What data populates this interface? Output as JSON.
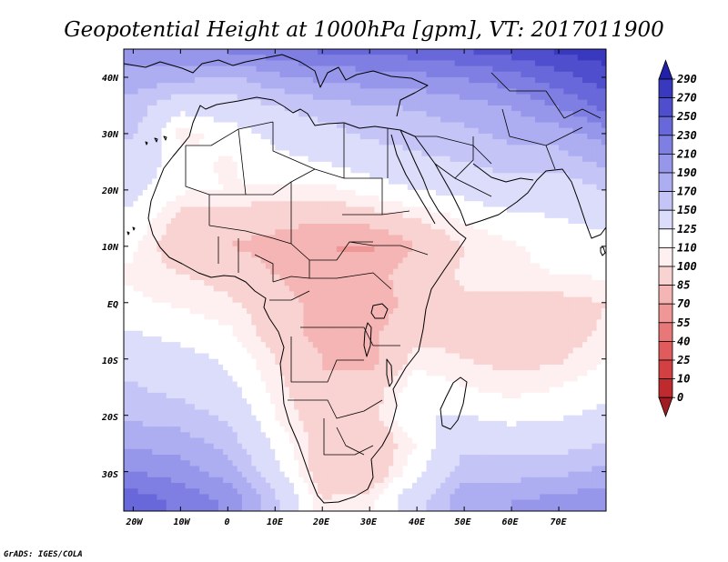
{
  "title": "Geopotential Height at 1000hPa [gpm], VT: 2017011900",
  "credit": "GrADS: IGES/COLA",
  "lon_labels": [
    "20W",
    "10W",
    "0",
    "10E",
    "20E",
    "30E",
    "40E",
    "50E",
    "60E",
    "70E"
  ],
  "lat_labels": [
    "40N",
    "30N",
    "20N",
    "10N",
    "EQ",
    "10S",
    "20S",
    "30S"
  ],
  "chart_data": {
    "type": "heatmap",
    "title": "Geopotential Height at 1000hPa [gpm], VT: 2017011900",
    "variable": "Geopotential Height",
    "level": "1000hPa",
    "units": "gpm",
    "valid_time": "2017011900",
    "lon_range": [
      -22,
      80
    ],
    "lat_range": [
      -37,
      45
    ],
    "lon_ticks": [
      -20,
      -10,
      0,
      10,
      20,
      30,
      40,
      50,
      60,
      70
    ],
    "lat_ticks": [
      40,
      30,
      20,
      10,
      0,
      -10,
      -20,
      -30
    ],
    "levels": [
      0,
      10,
      25,
      40,
      55,
      70,
      85,
      100,
      110,
      125,
      150,
      170,
      190,
      210,
      230,
      250,
      270,
      290
    ],
    "colorbar_labels": [
      "290",
      "270",
      "250",
      "230",
      "210",
      "190",
      "170",
      "150",
      "125",
      "110",
      "100",
      "85",
      "70",
      "55",
      "40",
      "25",
      "10",
      "0"
    ],
    "colors": [
      "#a11b22",
      "#be2a2e",
      "#d24043",
      "#df5b5c",
      "#e87878",
      "#ef9696",
      "#f5b5b5",
      "#f9d2d2",
      "#fef0f0",
      "#ffffff",
      "#dcdcfb",
      "#c4c4f6",
      "#adadf1",
      "#9696ea",
      "#7f7fe3",
      "#6868da",
      "#4f4fce",
      "#3939c0",
      "#2020a8"
    ],
    "sample_field": {
      "lons": [
        -20,
        -10,
        0,
        10,
        20,
        30,
        40,
        50,
        60,
        70,
        80
      ],
      "lats": [
        45,
        40,
        35,
        30,
        25,
        20,
        15,
        10,
        5,
        0,
        -5,
        -10,
        -15,
        -20,
        -25,
        -30,
        -35
      ],
      "values": [
        [
          200,
          205,
          215,
          225,
          235,
          238,
          242,
          252,
          262,
          275,
          282
        ],
        [
          182,
          178,
          165,
          185,
          195,
          200,
          205,
          212,
          222,
          242,
          262
        ],
        [
          162,
          132,
          140,
          150,
          162,
          170,
          172,
          182,
          192,
          212,
          240
        ],
        [
          152,
          105,
          115,
          130,
          140,
          155,
          160,
          165,
          175,
          180,
          200
        ],
        [
          140,
          115,
          108,
          120,
          125,
          135,
          145,
          150,
          160,
          160,
          175
        ],
        [
          130,
          112,
          110,
          108,
          105,
          115,
          125,
          130,
          140,
          135,
          150
        ],
        [
          122,
          95,
          92,
          90,
          88,
          92,
          100,
          112,
          120,
          125,
          130
        ],
        [
          112,
          88,
          85,
          80,
          70,
          68,
          85,
          100,
          108,
          115,
          120
        ],
        [
          108,
          100,
          95,
          85,
          75,
          78,
          95,
          102,
          108,
          110,
          112
        ],
        [
          112,
          108,
          102,
          92,
          80,
          75,
          92,
          98,
          96,
          95,
          100
        ],
        [
          125,
          118,
          112,
          92,
          80,
          82,
          95,
          96,
          90,
          92,
          102
        ],
        [
          140,
          132,
          122,
          100,
          85,
          80,
          105,
          100,
          95,
          98,
          110
        ],
        [
          152,
          142,
          130,
          105,
          85,
          90,
          118,
          110,
          105,
          110,
          118
        ],
        [
          165,
          160,
          145,
          110,
          90,
          95,
          125,
          125,
          118,
          122,
          130
        ],
        [
          185,
          180,
          162,
          120,
          92,
          85,
          110,
          145,
          140,
          140,
          150
        ],
        [
          210,
          200,
          180,
          130,
          90,
          85,
          120,
          160,
          160,
          165,
          175
        ],
        [
          240,
          225,
          205,
          155,
          100,
          105,
          140,
          185,
          190,
          195,
          205
        ]
      ]
    }
  },
  "map_data": {
    "domain": {
      "lon": [
        -22,
        80
      ],
      "lat": [
        -37,
        45
      ]
    },
    "features": [
      "coastlines",
      "country borders"
    ]
  }
}
